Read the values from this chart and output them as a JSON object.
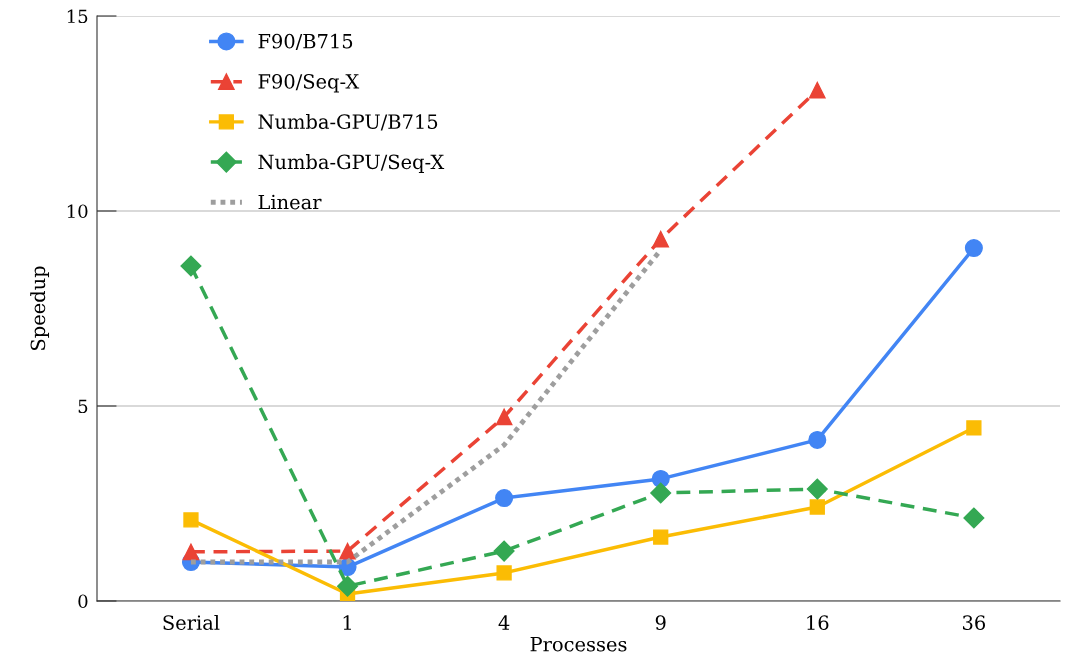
{
  "chart_data": {
    "type": "line",
    "xlabel": "Processes",
    "ylabel": "Speedup",
    "categories": [
      "Serial",
      "1",
      "4",
      "9",
      "16",
      "36"
    ],
    "ylim": [
      0,
      15
    ],
    "yticks": [
      0,
      5,
      10,
      15
    ],
    "grid": "y",
    "legend": "top left",
    "series": [
      {
        "name": "F90/B715",
        "color": "#4285f4",
        "marker": "circle",
        "line_style": "solid",
        "values": [
          1.0,
          0.87,
          2.64,
          3.13,
          4.13,
          9.05
        ]
      },
      {
        "name": "F90/Seq-X",
        "color": "#ea4335",
        "marker": "triangle",
        "line_style": "dashed",
        "values": [
          1.26,
          1.28,
          4.72,
          9.28,
          13.1,
          null
        ]
      },
      {
        "name": "Numba-GPU/B715",
        "color": "#fbbc04",
        "marker": "square",
        "line_style": "solid",
        "values": [
          2.08,
          0.18,
          0.72,
          1.64,
          2.41,
          4.44
        ]
      },
      {
        "name": "Numba-GPU/Seq-X",
        "color": "#34a853",
        "marker": "diamond",
        "line_style": "dashed",
        "values": [
          8.59,
          0.38,
          1.28,
          2.77,
          2.87,
          2.13
        ]
      },
      {
        "name": "Linear",
        "color": "#9e9e9e",
        "marker": "none",
        "line_style": "dotted",
        "values": [
          1,
          1,
          4,
          9,
          null,
          null
        ]
      }
    ]
  }
}
